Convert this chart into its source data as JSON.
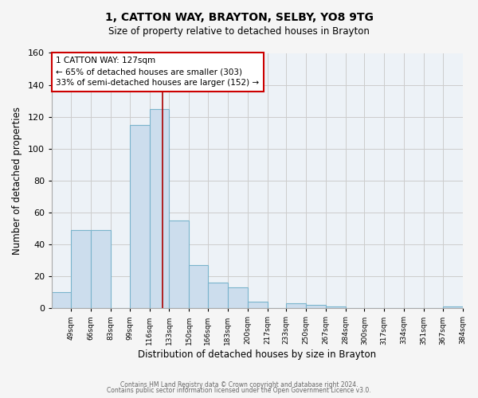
{
  "title": "1, CATTON WAY, BRAYTON, SELBY, YO8 9TG",
  "subtitle": "Size of property relative to detached houses in Brayton",
  "xlabel": "Distribution of detached houses by size in Brayton",
  "ylabel": "Number of detached properties",
  "bin_edges": [
    32.5,
    49,
    66,
    83,
    99,
    116,
    133,
    150,
    166,
    183,
    200,
    217,
    233,
    250,
    267,
    284,
    300,
    317,
    334,
    351,
    367,
    384
  ],
  "bar_heights": [
    10,
    49,
    49,
    0,
    115,
    125,
    55,
    27,
    16,
    13,
    4,
    0,
    3,
    2,
    1,
    0,
    0,
    0,
    0,
    0,
    1
  ],
  "tick_labels": [
    "49sqm",
    "66sqm",
    "83sqm",
    "99sqm",
    "116sqm",
    "133sqm",
    "150sqm",
    "166sqm",
    "183sqm",
    "200sqm",
    "217sqm",
    "233sqm",
    "250sqm",
    "267sqm",
    "284sqm",
    "300sqm",
    "317sqm",
    "334sqm",
    "351sqm",
    "367sqm",
    "384sqm"
  ],
  "bar_color": "#ccdded",
  "bar_edge_color": "#7ab4cc",
  "property_line_x": 127,
  "property_line_color": "#aa0000",
  "annotation_title": "1 CATTON WAY: 127sqm",
  "annotation_line1": "← 65% of detached houses are smaller (303)",
  "annotation_line2": "33% of semi-detached houses are larger (152) →",
  "annotation_box_facecolor": "#ffffff",
  "annotation_box_edgecolor": "#cc0000",
  "ylim": [
    0,
    160
  ],
  "yticks": [
    0,
    20,
    40,
    60,
    80,
    100,
    120,
    140,
    160
  ],
  "grid_color": "#cccccc",
  "plot_bg_color": "#edf2f7",
  "fig_bg_color": "#f5f5f5",
  "footer1": "Contains HM Land Registry data © Crown copyright and database right 2024.",
  "footer2": "Contains public sector information licensed under the Open Government Licence v3.0."
}
